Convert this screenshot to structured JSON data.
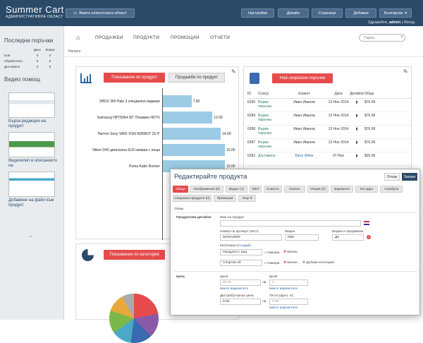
{
  "header": {
    "logo_main": "Summer Cart",
    "logo_sub": "АДМИНИСТРАТИВНА ОБЛАСТ",
    "store_btn": "Вижте клиентската област",
    "menu": [
      "Настройки",
      "Дизайн",
      "Страници",
      "Добавки",
      "Български"
    ],
    "greeting": "Здравейте,",
    "user": "admin",
    "logout": "Изход"
  },
  "sidebar": {
    "orders_title": "Последни поръчки",
    "order_cols": [
      "",
      "Днес",
      "Вчера"
    ],
    "order_rows": [
      [
        "Нов",
        "0",
        "0"
      ],
      [
        "Обработено",
        "0",
        "0"
      ],
      [
        "Доставено",
        "0",
        "0"
      ]
    ],
    "video_title": "Видео помощ",
    "videos": [
      "Бърза редакция на продукт",
      "Видеоклип в описанието на",
      "Добавяне на файл към продукт"
    ]
  },
  "nav": {
    "tabs": [
      "ПРОДАЖБИ",
      "ПРОДУКТИ",
      "ПРОМОЦИИ",
      "ОТЧЕТИ"
    ],
    "search_placeholder": "Търси...",
    "breadcrumb": "Начало"
  },
  "sales_panel": {
    "btn_active": "Показвания по продукт",
    "btn_other": "Продажби по продукт"
  },
  "chart_data": {
    "type": "bar",
    "orientation": "horizontal",
    "categories": [
      "XBOX 360 Halo 3 специално издание",
      "Samsung HPT5064 50\" Плазмен HDTV",
      "Лаптоп Sony VAIO VGN-N350E/T 15.4\"",
      "Nikon D40 дигитална SLR камера с леща",
      "Puma Kabo Runner"
    ],
    "values": [
      7.0,
      12.0,
      14.0,
      15.0,
      15.0
    ],
    "labels": [
      "7.00",
      "12.00",
      "14.00",
      "15.00",
      "15.00"
    ],
    "xlim": [
      0,
      16
    ]
  },
  "orders_panel": {
    "btn": "Най-скорошни поръчки",
    "headers": [
      "ID",
      "Статус",
      "Клиент",
      "Дата",
      "Детайли",
      "Общо"
    ],
    "rows": [
      {
        "id": "6290",
        "status": "Върва поръчка",
        "client": "Иван Иванов",
        "date": "13 Ное 2014",
        "total": "$76.99"
      },
      {
        "id": "6289",
        "status": "Върва поръчка",
        "client": "Иван Иванов",
        "date": "13 Ное 2014",
        "total": "$76.99"
      },
      {
        "id": "6288",
        "status": "Върва поръчка",
        "client": "Иван Иванов",
        "date": "13 Ное 2014",
        "total": "$76.99"
      },
      {
        "id": "6287",
        "status": "Върва поръчка",
        "client": "Иван Иванов",
        "date": "13 Ное 2014",
        "total": "$76.99"
      },
      {
        "id": "6282",
        "status": "Доставено",
        "client": "Barry White",
        "date": "07 Ное",
        "total": "$25.00"
      }
    ]
  },
  "category_panel": {
    "btn": "Показвания по категория",
    "pie_colors": [
      "#e64b4b",
      "#8a5aa8",
      "#3a6ab0",
      "#4aa8c8",
      "#7ab84a",
      "#e8a83a",
      "#aaa"
    ]
  },
  "modal": {
    "title": "Редактирайте продукта",
    "close": "Откаж",
    "save": "Запази",
    "tabs": [
      "Общи",
      "Изображения (0)",
      "Видео (1)",
      "SEO",
      "Етикети",
      "Изскио",
      "Опции (0)",
      "Варианти",
      "На едро",
      "Атрибути",
      "Свързани продукти (0)",
      "Промоции",
      "Още ▾"
    ],
    "section": "Общи",
    "product_details": "Продуктови детайли",
    "name_label": "Име на продукт",
    "sku_label": "Номер на артикул (SKU)",
    "sku_value": "MARA0000",
    "brand_label": "Марка",
    "brand_value": "Nike",
    "visible_label": "Видим и продаваем",
    "visible_value": "Да",
    "categories_label": "Категории",
    "categories_link": "(Създай)",
    "cat1": "Продукти с вид",
    "cat2": "Спортни об",
    "find": "Намери",
    "remove": "Махни",
    "add_category": "Добави категория",
    "price_section": "Цена",
    "price_label": "Цена",
    "price_value": "00.00",
    "price_unit": "лв.",
    "variants_link": "вижте вариантите",
    "qty_label": "Брой",
    "qty_value": "0",
    "dist_label": "Дистрибуторска цена",
    "dist_value": "0.00",
    "weight_label": "Тегло (фунт, кг)",
    "weight_value": "0.00"
  }
}
